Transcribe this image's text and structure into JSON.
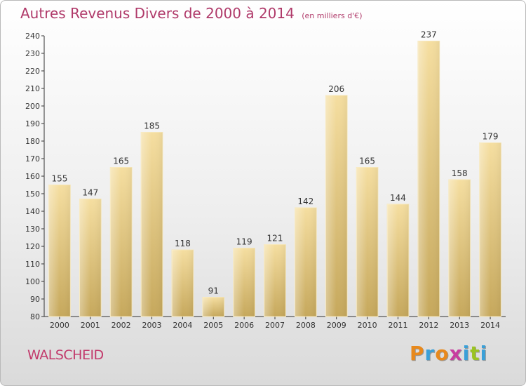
{
  "header": {
    "title": "Autres Revenus Divers de 2000 à 2014",
    "subtitle": "(en milliers d'€)"
  },
  "footer": {
    "location": "WALSCHEID",
    "logo_letters": [
      "P",
      "r",
      "o",
      "x",
      "i",
      "t",
      "i"
    ],
    "logo_colors": [
      "#e8891c",
      "#3aa0d8",
      "#e8891c",
      "#c83ca0",
      "#3aa0d8",
      "#9bc321",
      "#3aa0d8"
    ]
  },
  "colors": {
    "title": "#b03a6a",
    "location": "#c2396b",
    "bar_light": "#f5dea0",
    "bar_dark": "#c6a85c"
  },
  "chart_data": {
    "type": "bar",
    "categories": [
      "2000",
      "2001",
      "2002",
      "2003",
      "2004",
      "2005",
      "2006",
      "2007",
      "2008",
      "2009",
      "2010",
      "2011",
      "2012",
      "2013",
      "2014"
    ],
    "values": [
      155,
      147,
      165,
      185,
      118,
      91,
      119,
      121,
      142,
      206,
      165,
      144,
      237,
      158,
      179
    ],
    "title": "Autres Revenus Divers de 2000 à 2014",
    "xlabel": "",
    "ylabel": "",
    "ylim": [
      80,
      240
    ],
    "yticks": [
      80,
      90,
      100,
      110,
      120,
      130,
      140,
      150,
      160,
      170,
      180,
      190,
      200,
      210,
      220,
      230,
      240
    ],
    "grid": false,
    "data_labels": true
  }
}
